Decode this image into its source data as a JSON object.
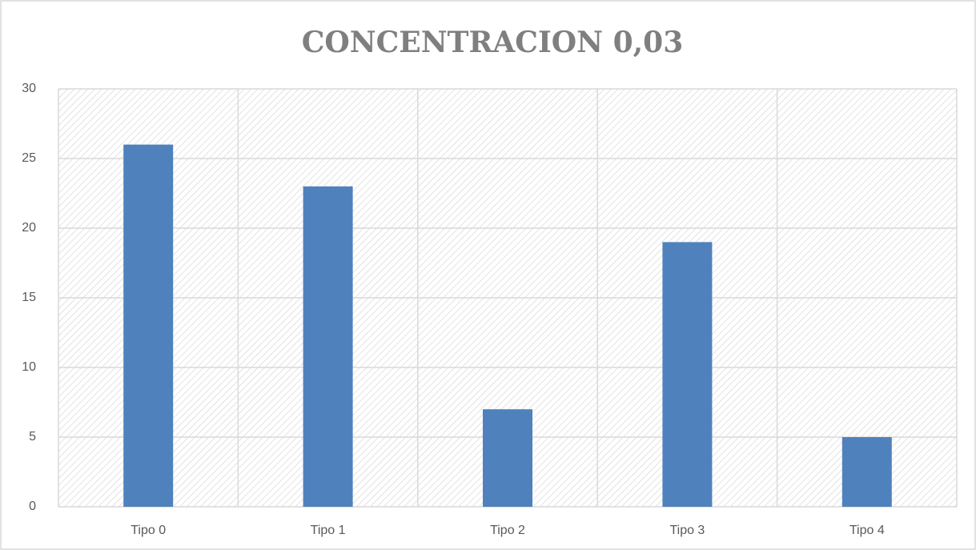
{
  "chart_data": {
    "type": "bar",
    "title": "CONCENTRACION 0,03",
    "categories": [
      "Tipo 0",
      "Tipo 1",
      "Tipo 2",
      "Tipo 3",
      "Tipo 4"
    ],
    "values": [
      26,
      23,
      7,
      19,
      5
    ],
    "color": "#4f81bd",
    "ylim": [
      0,
      30
    ],
    "yticks": [
      0,
      5,
      10,
      15,
      20,
      25,
      30
    ],
    "grid": true
  }
}
